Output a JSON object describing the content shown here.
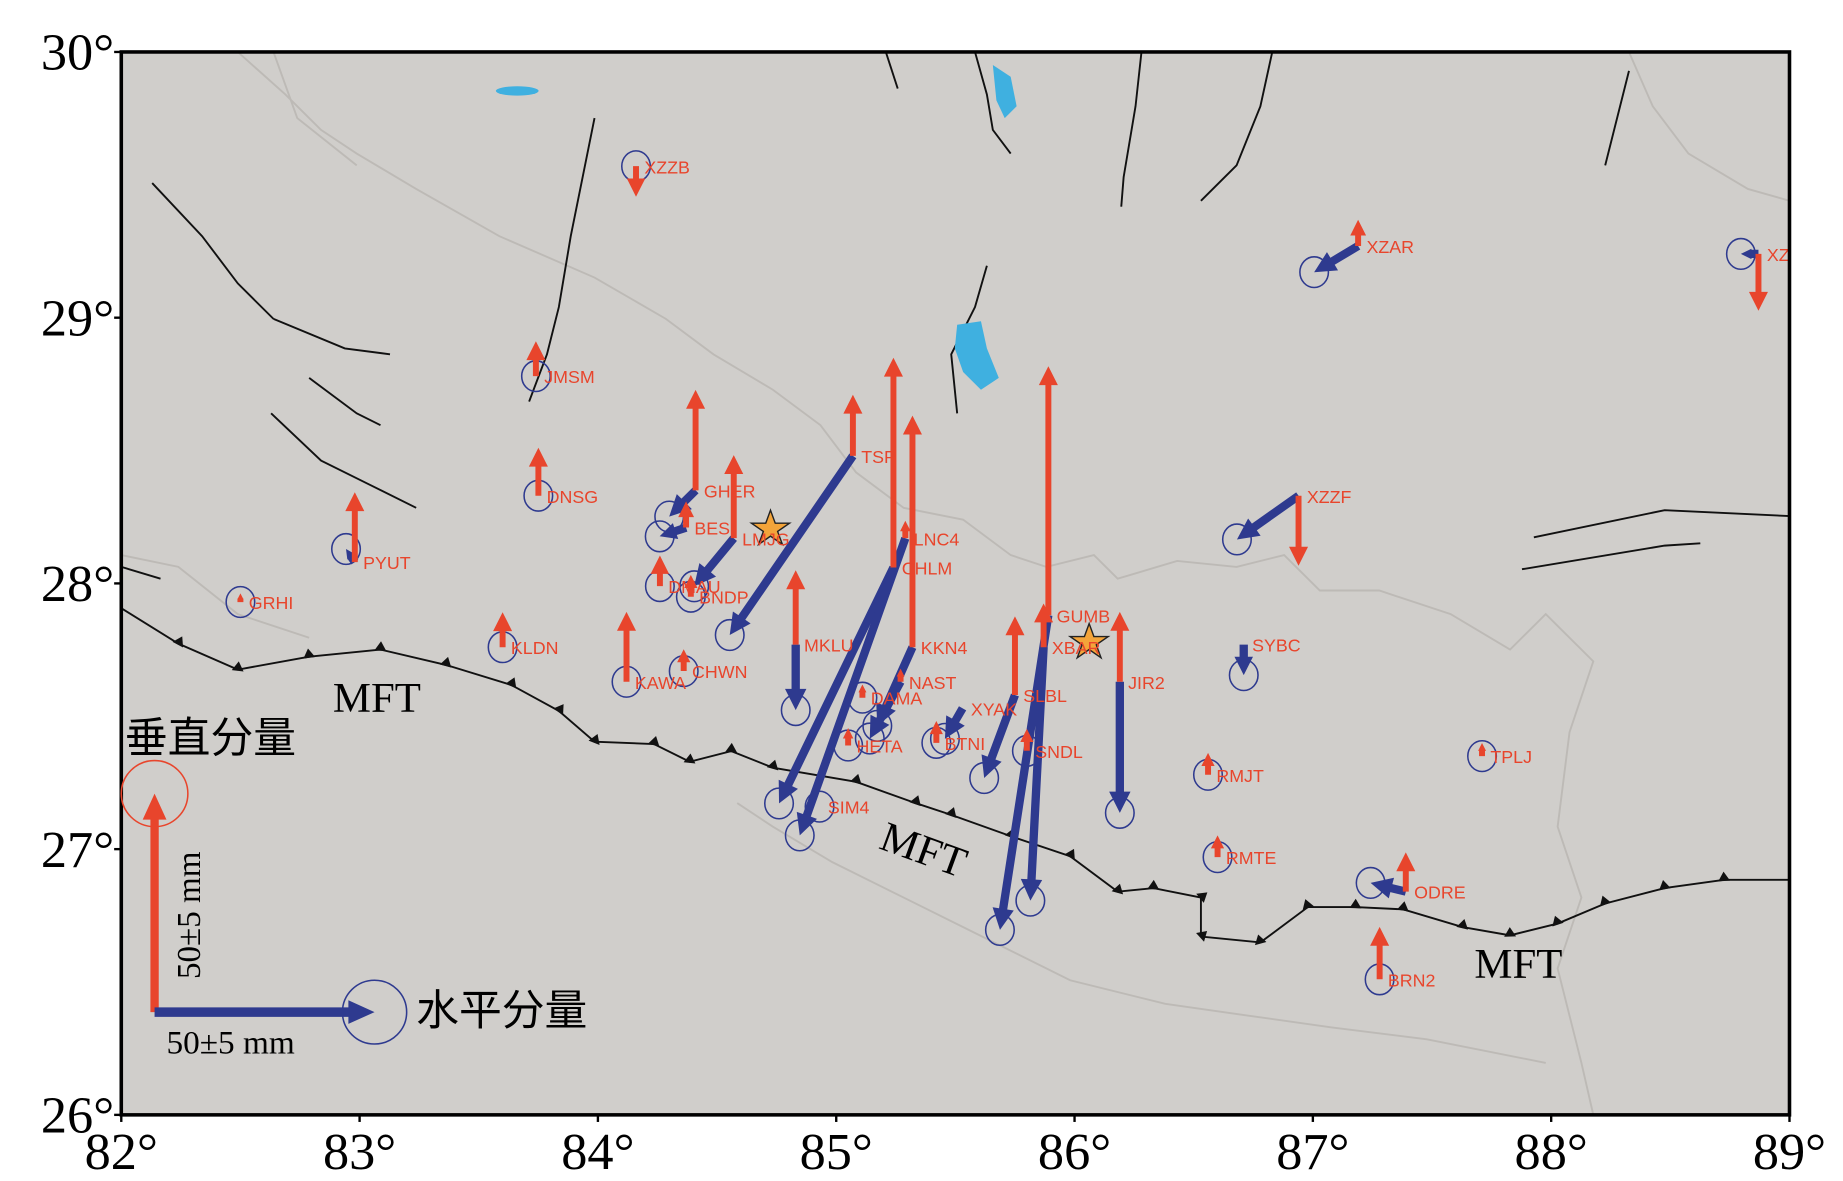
{
  "map": {
    "xlim": [
      82,
      89
    ],
    "ylim": [
      26,
      30
    ],
    "xticks": [
      {
        "value": 82,
        "label": "82°"
      },
      {
        "value": 83,
        "label": "83°"
      },
      {
        "value": 84,
        "label": "84°"
      },
      {
        "value": 85,
        "label": "85°"
      },
      {
        "value": 86,
        "label": "86°"
      },
      {
        "value": 87,
        "label": "87°"
      },
      {
        "value": 88,
        "label": "88°"
      },
      {
        "value": 89,
        "label": "89°"
      }
    ],
    "yticks": [
      {
        "value": 26,
        "label": "26°"
      },
      {
        "value": 27,
        "label": "27°"
      },
      {
        "value": 28,
        "label": "28°"
      },
      {
        "value": 29,
        "label": "29°"
      },
      {
        "value": 30,
        "label": "30°"
      }
    ],
    "vertical_color": "#e8452c",
    "horizontal_color": "#2e3a8f",
    "stations": [
      {
        "name": "XZZB",
        "lon": 84.16,
        "lat": 29.57,
        "east": 0,
        "north": 0,
        "up": -7
      },
      {
        "name": "XZAR",
        "lon": 87.19,
        "lat": 29.27,
        "east": -10,
        "north": -6,
        "up": 6
      },
      {
        "name": "XZ",
        "lon": 88.87,
        "lat": 29.24,
        "east": -4,
        "north": 0,
        "up": -13
      },
      {
        "name": "JMSM",
        "lon": 83.74,
        "lat": 28.78,
        "east": 0,
        "north": 0,
        "up": 8
      },
      {
        "name": "DNSG",
        "lon": 83.75,
        "lat": 28.33,
        "east": 0,
        "north": 0,
        "up": 11
      },
      {
        "name": "PYUT",
        "lon": 82.98,
        "lat": 28.08,
        "east": -2,
        "north": 3,
        "up": 16
      },
      {
        "name": "GRHI",
        "lon": 82.5,
        "lat": 27.93,
        "east": 0,
        "north": 0,
        "up": 2
      },
      {
        "name": "GHER",
        "lon": 84.41,
        "lat": 28.35,
        "east": -6,
        "north": -6,
        "up": 23
      },
      {
        "name": "BESI",
        "lon": 84.37,
        "lat": 28.21,
        "east": -6,
        "north": -2,
        "up": 6
      },
      {
        "name": "LMJG",
        "lon": 84.57,
        "lat": 28.17,
        "east": -9,
        "north": -11,
        "up": 19
      },
      {
        "name": "DMAU",
        "lon": 84.26,
        "lat": 27.99,
        "east": 0,
        "north": 0,
        "up": 7
      },
      {
        "name": "BNDP",
        "lon": 84.39,
        "lat": 27.95,
        "east": 0,
        "north": 0,
        "up": 5
      },
      {
        "name": "TSP",
        "lon": 85.07,
        "lat": 28.48,
        "east": -28,
        "north": -41,
        "up": 14
      },
      {
        "name": "CHLM",
        "lon": 85.24,
        "lat": 28.06,
        "east": -26,
        "north": -54,
        "up": 48
      },
      {
        "name": "LNC4",
        "lon": 85.29,
        "lat": 28.17,
        "east": -24,
        "north": -68,
        "up": 4
      },
      {
        "name": "KKN4",
        "lon": 85.32,
        "lat": 27.76,
        "east": -8,
        "north": -18,
        "up": 53
      },
      {
        "name": "NAST",
        "lon": 85.27,
        "lat": 27.63,
        "east": -7,
        "north": -13,
        "up": 3
      },
      {
        "name": "MKLU",
        "lon": 84.83,
        "lat": 27.77,
        "east": 0,
        "north": -15,
        "up": 17
      },
      {
        "name": "KAWA",
        "lon": 84.12,
        "lat": 27.63,
        "east": 0,
        "north": 0,
        "up": 16
      },
      {
        "name": "CHWN",
        "lon": 84.36,
        "lat": 27.67,
        "east": 0,
        "north": 0,
        "up": 5
      },
      {
        "name": "KLDN",
        "lon": 83.6,
        "lat": 27.76,
        "east": 0,
        "north": 0,
        "up": 8
      },
      {
        "name": "DAMA",
        "lon": 85.11,
        "lat": 27.57,
        "east": 0,
        "north": 0,
        "up": 3
      },
      {
        "name": "HETA",
        "lon": 85.05,
        "lat": 27.39,
        "east": 0,
        "north": 0,
        "up": 4
      },
      {
        "name": "SIM4",
        "lon": 84.93,
        "lat": 27.16,
        "east": 0,
        "north": 0,
        "up": 0
      },
      {
        "name": "XYAK",
        "lon": 85.53,
        "lat": 27.53,
        "east": -4,
        "north": -7,
        "up": 0
      },
      {
        "name": "BTNI",
        "lon": 85.42,
        "lat": 27.4,
        "east": 0,
        "north": 0,
        "up": 5
      },
      {
        "name": "GUMB",
        "lon": 85.89,
        "lat": 27.88,
        "east": -11,
        "north": -72,
        "up": 57
      },
      {
        "name": "SLBL",
        "lon": 85.75,
        "lat": 27.58,
        "east": -7,
        "north": -19,
        "up": 18
      },
      {
        "name": "SNDL",
        "lon": 85.8,
        "lat": 27.37,
        "east": 0,
        "north": 0,
        "up": 5
      },
      {
        "name": "XBAR",
        "lon": 85.87,
        "lat": 27.76,
        "east": -3,
        "north": -58,
        "up": 10
      },
      {
        "name": "JIR2",
        "lon": 86.19,
        "lat": 27.63,
        "east": 0,
        "north": -30,
        "up": 16
      },
      {
        "name": "XZZF",
        "lon": 86.94,
        "lat": 28.33,
        "east": -14,
        "north": -10,
        "up": -16
      },
      {
        "name": "SYBC",
        "lon": 86.71,
        "lat": 27.77,
        "east": 0,
        "north": -7,
        "up": 0
      },
      {
        "name": "RMJT",
        "lon": 86.56,
        "lat": 27.28,
        "east": 0,
        "north": 0,
        "up": 5
      },
      {
        "name": "RMTE",
        "lon": 86.6,
        "lat": 26.97,
        "east": 0,
        "north": 0,
        "up": 5
      },
      {
        "name": "TPLJ",
        "lon": 87.71,
        "lat": 27.35,
        "east": 0,
        "north": 0,
        "up": 3
      },
      {
        "name": "ODRE",
        "lon": 87.39,
        "lat": 26.84,
        "east": -8,
        "north": 2,
        "up": 9
      },
      {
        "name": "BRN2",
        "lon": 87.28,
        "lat": 26.51,
        "east": 0,
        "north": 0,
        "up": 12
      }
    ],
    "fault_labels": [
      "MFT",
      "MFT",
      "MFT"
    ],
    "legend": {
      "vertical_label": "垂直分量",
      "horizontal_label": "水平分量",
      "scale": 50,
      "scale_label": "50±5 mm"
    }
  }
}
